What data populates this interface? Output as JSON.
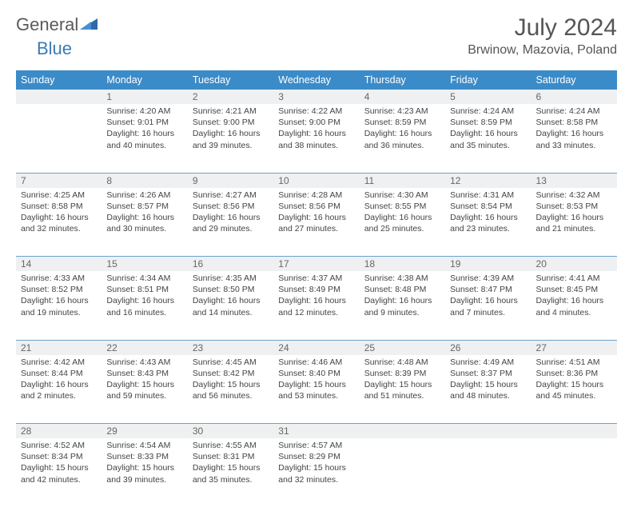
{
  "logo": {
    "word1": "General",
    "word2": "Blue"
  },
  "title": "July 2024",
  "location": "Brwinow, Mazovia, Poland",
  "colors": {
    "header_bg": "#3b8bc9",
    "header_fg": "#ffffff",
    "daynum_bg": "#eef0f1",
    "rule": "#6ca3cd"
  },
  "daysOfWeek": [
    "Sunday",
    "Monday",
    "Tuesday",
    "Wednesday",
    "Thursday",
    "Friday",
    "Saturday"
  ],
  "weeks": [
    [
      {
        "num": "",
        "lines": []
      },
      {
        "num": "1",
        "lines": [
          "Sunrise: 4:20 AM",
          "Sunset: 9:01 PM",
          "Daylight: 16 hours",
          "and 40 minutes."
        ]
      },
      {
        "num": "2",
        "lines": [
          "Sunrise: 4:21 AM",
          "Sunset: 9:00 PM",
          "Daylight: 16 hours",
          "and 39 minutes."
        ]
      },
      {
        "num": "3",
        "lines": [
          "Sunrise: 4:22 AM",
          "Sunset: 9:00 PM",
          "Daylight: 16 hours",
          "and 38 minutes."
        ]
      },
      {
        "num": "4",
        "lines": [
          "Sunrise: 4:23 AM",
          "Sunset: 8:59 PM",
          "Daylight: 16 hours",
          "and 36 minutes."
        ]
      },
      {
        "num": "5",
        "lines": [
          "Sunrise: 4:24 AM",
          "Sunset: 8:59 PM",
          "Daylight: 16 hours",
          "and 35 minutes."
        ]
      },
      {
        "num": "6",
        "lines": [
          "Sunrise: 4:24 AM",
          "Sunset: 8:58 PM",
          "Daylight: 16 hours",
          "and 33 minutes."
        ]
      }
    ],
    [
      {
        "num": "7",
        "lines": [
          "Sunrise: 4:25 AM",
          "Sunset: 8:58 PM",
          "Daylight: 16 hours",
          "and 32 minutes."
        ]
      },
      {
        "num": "8",
        "lines": [
          "Sunrise: 4:26 AM",
          "Sunset: 8:57 PM",
          "Daylight: 16 hours",
          "and 30 minutes."
        ]
      },
      {
        "num": "9",
        "lines": [
          "Sunrise: 4:27 AM",
          "Sunset: 8:56 PM",
          "Daylight: 16 hours",
          "and 29 minutes."
        ]
      },
      {
        "num": "10",
        "lines": [
          "Sunrise: 4:28 AM",
          "Sunset: 8:56 PM",
          "Daylight: 16 hours",
          "and 27 minutes."
        ]
      },
      {
        "num": "11",
        "lines": [
          "Sunrise: 4:30 AM",
          "Sunset: 8:55 PM",
          "Daylight: 16 hours",
          "and 25 minutes."
        ]
      },
      {
        "num": "12",
        "lines": [
          "Sunrise: 4:31 AM",
          "Sunset: 8:54 PM",
          "Daylight: 16 hours",
          "and 23 minutes."
        ]
      },
      {
        "num": "13",
        "lines": [
          "Sunrise: 4:32 AM",
          "Sunset: 8:53 PM",
          "Daylight: 16 hours",
          "and 21 minutes."
        ]
      }
    ],
    [
      {
        "num": "14",
        "lines": [
          "Sunrise: 4:33 AM",
          "Sunset: 8:52 PM",
          "Daylight: 16 hours",
          "and 19 minutes."
        ]
      },
      {
        "num": "15",
        "lines": [
          "Sunrise: 4:34 AM",
          "Sunset: 8:51 PM",
          "Daylight: 16 hours",
          "and 16 minutes."
        ]
      },
      {
        "num": "16",
        "lines": [
          "Sunrise: 4:35 AM",
          "Sunset: 8:50 PM",
          "Daylight: 16 hours",
          "and 14 minutes."
        ]
      },
      {
        "num": "17",
        "lines": [
          "Sunrise: 4:37 AM",
          "Sunset: 8:49 PM",
          "Daylight: 16 hours",
          "and 12 minutes."
        ]
      },
      {
        "num": "18",
        "lines": [
          "Sunrise: 4:38 AM",
          "Sunset: 8:48 PM",
          "Daylight: 16 hours",
          "and 9 minutes."
        ]
      },
      {
        "num": "19",
        "lines": [
          "Sunrise: 4:39 AM",
          "Sunset: 8:47 PM",
          "Daylight: 16 hours",
          "and 7 minutes."
        ]
      },
      {
        "num": "20",
        "lines": [
          "Sunrise: 4:41 AM",
          "Sunset: 8:45 PM",
          "Daylight: 16 hours",
          "and 4 minutes."
        ]
      }
    ],
    [
      {
        "num": "21",
        "lines": [
          "Sunrise: 4:42 AM",
          "Sunset: 8:44 PM",
          "Daylight: 16 hours",
          "and 2 minutes."
        ]
      },
      {
        "num": "22",
        "lines": [
          "Sunrise: 4:43 AM",
          "Sunset: 8:43 PM",
          "Daylight: 15 hours",
          "and 59 minutes."
        ]
      },
      {
        "num": "23",
        "lines": [
          "Sunrise: 4:45 AM",
          "Sunset: 8:42 PM",
          "Daylight: 15 hours",
          "and 56 minutes."
        ]
      },
      {
        "num": "24",
        "lines": [
          "Sunrise: 4:46 AM",
          "Sunset: 8:40 PM",
          "Daylight: 15 hours",
          "and 53 minutes."
        ]
      },
      {
        "num": "25",
        "lines": [
          "Sunrise: 4:48 AM",
          "Sunset: 8:39 PM",
          "Daylight: 15 hours",
          "and 51 minutes."
        ]
      },
      {
        "num": "26",
        "lines": [
          "Sunrise: 4:49 AM",
          "Sunset: 8:37 PM",
          "Daylight: 15 hours",
          "and 48 minutes."
        ]
      },
      {
        "num": "27",
        "lines": [
          "Sunrise: 4:51 AM",
          "Sunset: 8:36 PM",
          "Daylight: 15 hours",
          "and 45 minutes."
        ]
      }
    ],
    [
      {
        "num": "28",
        "lines": [
          "Sunrise: 4:52 AM",
          "Sunset: 8:34 PM",
          "Daylight: 15 hours",
          "and 42 minutes."
        ]
      },
      {
        "num": "29",
        "lines": [
          "Sunrise: 4:54 AM",
          "Sunset: 8:33 PM",
          "Daylight: 15 hours",
          "and 39 minutes."
        ]
      },
      {
        "num": "30",
        "lines": [
          "Sunrise: 4:55 AM",
          "Sunset: 8:31 PM",
          "Daylight: 15 hours",
          "and 35 minutes."
        ]
      },
      {
        "num": "31",
        "lines": [
          "Sunrise: 4:57 AM",
          "Sunset: 8:29 PM",
          "Daylight: 15 hours",
          "and 32 minutes."
        ]
      },
      {
        "num": "",
        "lines": []
      },
      {
        "num": "",
        "lines": []
      },
      {
        "num": "",
        "lines": []
      }
    ]
  ]
}
